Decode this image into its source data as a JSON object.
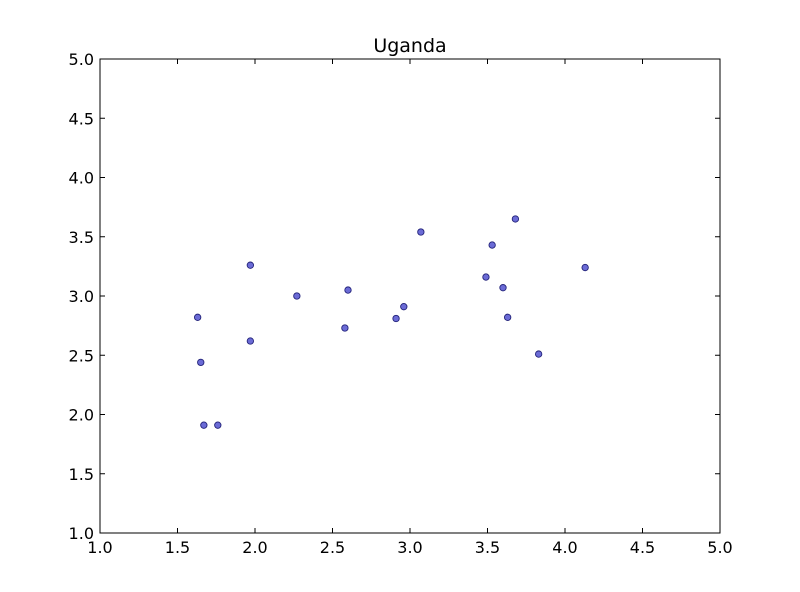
{
  "chart_data": {
    "type": "scatter",
    "title": "Uganda",
    "xlabel": "",
    "ylabel": "",
    "xlim": [
      1.0,
      5.0
    ],
    "ylim": [
      1.0,
      5.0
    ],
    "xticks": [
      "1.0",
      "1.5",
      "2.0",
      "2.5",
      "3.0",
      "3.5",
      "4.0",
      "4.5",
      "5.0"
    ],
    "yticks": [
      "1.0",
      "1.5",
      "2.0",
      "2.5",
      "3.0",
      "3.5",
      "4.0",
      "4.5",
      "5.0"
    ],
    "grid": false,
    "marker_color": "#6b6bd6",
    "marker_edge": "#23237a",
    "points": [
      {
        "x": 1.63,
        "y": 2.82
      },
      {
        "x": 1.65,
        "y": 2.44
      },
      {
        "x": 1.67,
        "y": 1.91
      },
      {
        "x": 1.76,
        "y": 1.91
      },
      {
        "x": 1.97,
        "y": 3.26
      },
      {
        "x": 1.97,
        "y": 2.62
      },
      {
        "x": 2.27,
        "y": 3.0
      },
      {
        "x": 2.58,
        "y": 2.73
      },
      {
        "x": 2.6,
        "y": 3.05
      },
      {
        "x": 2.91,
        "y": 2.81
      },
      {
        "x": 2.96,
        "y": 2.91
      },
      {
        "x": 3.07,
        "y": 3.54
      },
      {
        "x": 3.49,
        "y": 3.16
      },
      {
        "x": 3.53,
        "y": 3.43
      },
      {
        "x": 3.6,
        "y": 3.07
      },
      {
        "x": 3.63,
        "y": 2.82
      },
      {
        "x": 3.68,
        "y": 3.65
      },
      {
        "x": 3.83,
        "y": 2.51
      },
      {
        "x": 4.13,
        "y": 3.24
      }
    ]
  }
}
